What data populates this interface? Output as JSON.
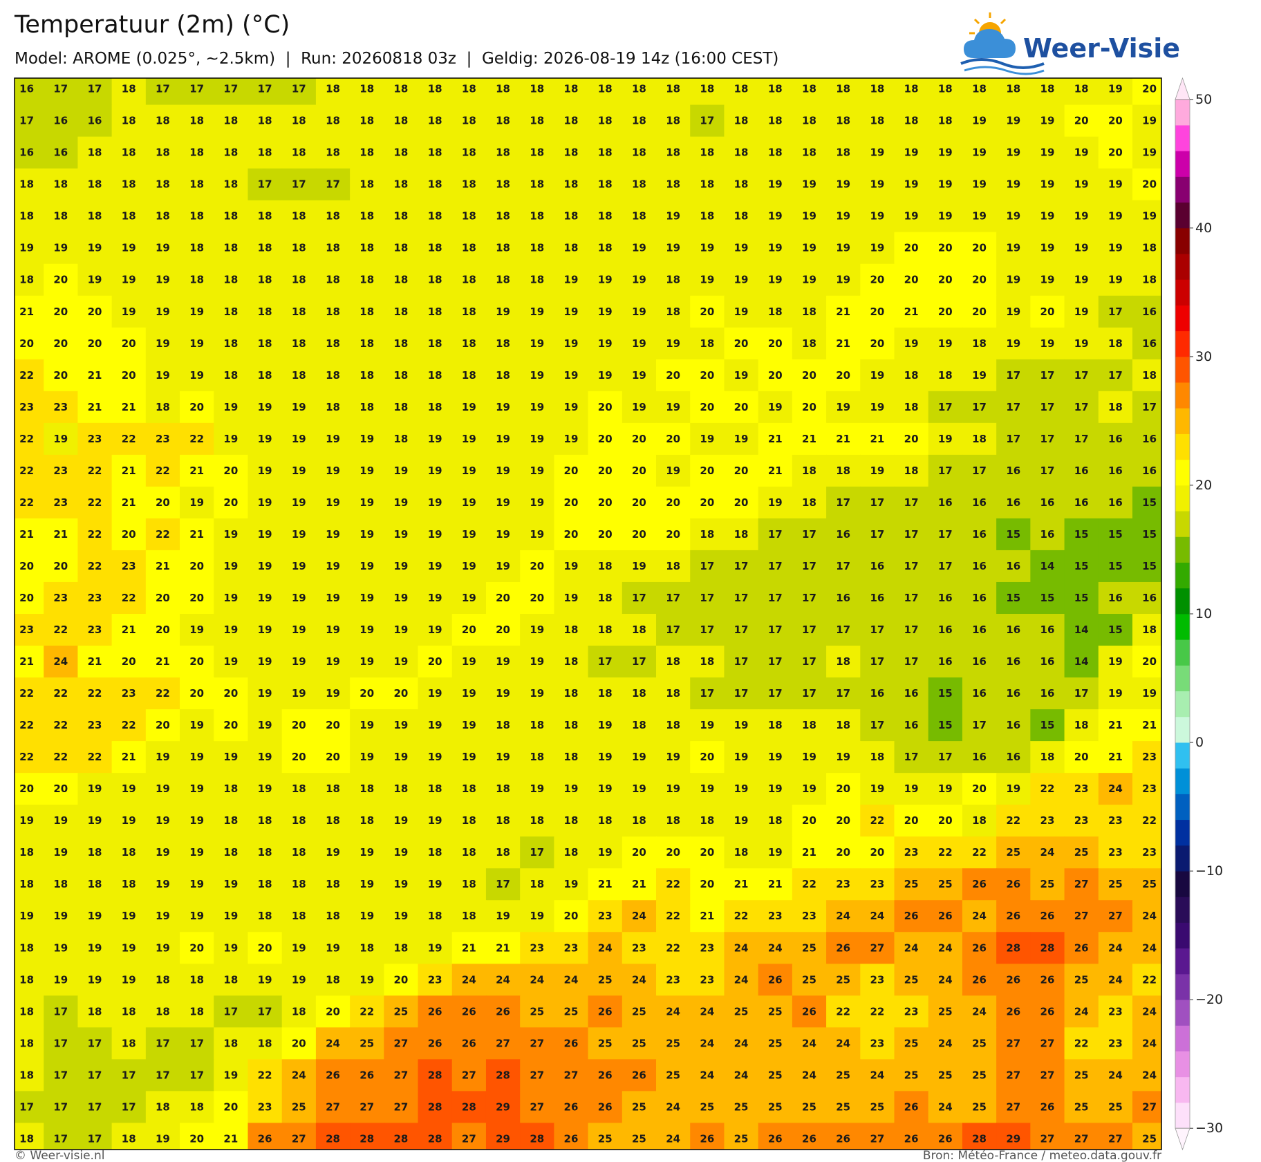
{
  "header": {
    "title": "Temperatuur (2m) (°C)",
    "subtitle": "Model: AROME (0.025°, ~2.5km)  |  Run: 20260818 03z  |  Geldig: 2026-08-19 14z (16:00 CEST)",
    "logo": "Weer-Visie"
  },
  "map": {
    "grid": [
      [
        16,
        17,
        17,
        18,
        17,
        17,
        17,
        17,
        17,
        18,
        18,
        18,
        18,
        18,
        18,
        18,
        18,
        18,
        18,
        18,
        18,
        18,
        18,
        18,
        18,
        18,
        18,
        18,
        18,
        18,
        18,
        18,
        19,
        20
      ],
      [
        17,
        16,
        16,
        18,
        18,
        18,
        18,
        18,
        18,
        18,
        18,
        18,
        18,
        18,
        18,
        18,
        18,
        18,
        18,
        18,
        17,
        18,
        18,
        18,
        18,
        18,
        18,
        18,
        19,
        19,
        19,
        20,
        20,
        19
      ],
      [
        16,
        16,
        18,
        18,
        18,
        18,
        18,
        18,
        18,
        18,
        18,
        18,
        18,
        18,
        18,
        18,
        18,
        18,
        18,
        18,
        18,
        18,
        18,
        18,
        18,
        19,
        19,
        19,
        19,
        19,
        19,
        19,
        20,
        19
      ],
      [
        18,
        18,
        18,
        18,
        18,
        18,
        18,
        17,
        17,
        17,
        18,
        18,
        18,
        18,
        18,
        18,
        18,
        18,
        18,
        18,
        18,
        18,
        19,
        19,
        19,
        19,
        19,
        19,
        19,
        19,
        19,
        19,
        19,
        20
      ],
      [
        18,
        18,
        18,
        18,
        18,
        18,
        18,
        18,
        18,
        18,
        18,
        18,
        18,
        18,
        18,
        18,
        18,
        18,
        18,
        19,
        18,
        18,
        19,
        19,
        19,
        19,
        19,
        19,
        19,
        19,
        19,
        19,
        19,
        19
      ],
      [
        19,
        19,
        19,
        19,
        19,
        18,
        18,
        18,
        18,
        18,
        18,
        18,
        18,
        18,
        18,
        18,
        18,
        18,
        19,
        19,
        19,
        19,
        19,
        19,
        19,
        19,
        20,
        20,
        20,
        19,
        19,
        19,
        19,
        18
      ],
      [
        18,
        20,
        19,
        19,
        19,
        18,
        18,
        18,
        18,
        18,
        18,
        18,
        18,
        18,
        18,
        18,
        19,
        19,
        19,
        18,
        19,
        19,
        19,
        19,
        19,
        20,
        20,
        20,
        20,
        19,
        19,
        19,
        19,
        18
      ],
      [
        21,
        20,
        20,
        19,
        19,
        19,
        18,
        18,
        18,
        18,
        18,
        18,
        18,
        18,
        19,
        19,
        19,
        19,
        19,
        18,
        20,
        19,
        18,
        18,
        21,
        20,
        21,
        20,
        20,
        19,
        20,
        19,
        17,
        16
      ],
      [
        20,
        20,
        20,
        20,
        19,
        19,
        18,
        18,
        18,
        18,
        18,
        18,
        18,
        18,
        18,
        19,
        19,
        19,
        19,
        19,
        18,
        20,
        20,
        18,
        21,
        20,
        19,
        19,
        18,
        19,
        19,
        19,
        18,
        16
      ],
      [
        22,
        20,
        21,
        20,
        19,
        19,
        18,
        18,
        18,
        18,
        18,
        18,
        18,
        18,
        18,
        19,
        19,
        19,
        19,
        20,
        20,
        19,
        20,
        20,
        20,
        19,
        18,
        18,
        19,
        17,
        17,
        17,
        17,
        18
      ],
      [
        23,
        23,
        21,
        21,
        18,
        20,
        19,
        19,
        19,
        18,
        18,
        18,
        18,
        19,
        19,
        19,
        19,
        20,
        19,
        19,
        20,
        20,
        19,
        20,
        19,
        19,
        18,
        17,
        17,
        17,
        17,
        17,
        18,
        17
      ],
      [
        22,
        19,
        23,
        22,
        23,
        22,
        19,
        19,
        19,
        19,
        19,
        18,
        19,
        19,
        19,
        19,
        19,
        20,
        20,
        20,
        19,
        19,
        21,
        21,
        21,
        21,
        20,
        19,
        18,
        17,
        17,
        17,
        16,
        16
      ],
      [
        22,
        23,
        22,
        21,
        22,
        21,
        20,
        19,
        19,
        19,
        19,
        19,
        19,
        19,
        19,
        19,
        20,
        20,
        20,
        19,
        20,
        20,
        21,
        18,
        18,
        19,
        18,
        17,
        17,
        16,
        17,
        16,
        16,
        16
      ],
      [
        22,
        23,
        22,
        21,
        20,
        19,
        20,
        19,
        19,
        19,
        19,
        19,
        19,
        19,
        19,
        19,
        20,
        20,
        20,
        20,
        20,
        20,
        19,
        18,
        17,
        17,
        17,
        16,
        16,
        16,
        16,
        16,
        16,
        15
      ],
      [
        21,
        21,
        22,
        20,
        22,
        21,
        19,
        19,
        19,
        19,
        19,
        19,
        19,
        19,
        19,
        19,
        20,
        20,
        20,
        20,
        18,
        18,
        17,
        17,
        16,
        17,
        17,
        17,
        16,
        15,
        16,
        15,
        15,
        15
      ],
      [
        20,
        20,
        22,
        23,
        21,
        20,
        19,
        19,
        19,
        19,
        19,
        19,
        19,
        19,
        19,
        20,
        19,
        18,
        19,
        18,
        17,
        17,
        17,
        17,
        17,
        16,
        17,
        17,
        16,
        16,
        14,
        15,
        15,
        15
      ],
      [
        20,
        23,
        23,
        22,
        20,
        20,
        19,
        19,
        19,
        19,
        19,
        19,
        19,
        19,
        20,
        20,
        19,
        18,
        17,
        17,
        17,
        17,
        17,
        17,
        16,
        16,
        17,
        16,
        16,
        15,
        15,
        15,
        16,
        16
      ],
      [
        23,
        22,
        23,
        21,
        20,
        19,
        19,
        19,
        19,
        19,
        19,
        19,
        19,
        20,
        20,
        19,
        18,
        18,
        18,
        17,
        17,
        17,
        17,
        17,
        17,
        17,
        17,
        16,
        16,
        16,
        16,
        14,
        15,
        18
      ],
      [
        21,
        24,
        21,
        20,
        21,
        20,
        19,
        19,
        19,
        19,
        19,
        19,
        20,
        19,
        19,
        19,
        18,
        17,
        17,
        18,
        18,
        17,
        17,
        17,
        18,
        17,
        17,
        16,
        16,
        16,
        16,
        14,
        19,
        20
      ],
      [
        22,
        22,
        22,
        23,
        22,
        20,
        20,
        19,
        19,
        19,
        20,
        20,
        19,
        19,
        19,
        19,
        18,
        18,
        18,
        18,
        17,
        17,
        17,
        17,
        17,
        16,
        16,
        15,
        16,
        16,
        16,
        17,
        19,
        19
      ],
      [
        22,
        22,
        23,
        22,
        20,
        19,
        20,
        19,
        20,
        20,
        19,
        19,
        19,
        19,
        18,
        18,
        18,
        19,
        18,
        18,
        19,
        19,
        18,
        18,
        18,
        17,
        16,
        15,
        17,
        16,
        15,
        18,
        21,
        21
      ],
      [
        22,
        22,
        22,
        21,
        19,
        19,
        19,
        19,
        20,
        20,
        19,
        19,
        19,
        19,
        19,
        18,
        18,
        19,
        19,
        19,
        20,
        19,
        19,
        19,
        19,
        18,
        17,
        17,
        16,
        16,
        18,
        20,
        21,
        23
      ],
      [
        20,
        20,
        19,
        19,
        19,
        19,
        18,
        19,
        18,
        18,
        18,
        18,
        18,
        18,
        18,
        19,
        19,
        19,
        19,
        19,
        19,
        19,
        19,
        19,
        20,
        19,
        19,
        19,
        20,
        19,
        22,
        23,
        24,
        23
      ],
      [
        19,
        19,
        19,
        19,
        19,
        19,
        18,
        18,
        18,
        18,
        18,
        19,
        19,
        18,
        18,
        18,
        18,
        18,
        18,
        18,
        18,
        19,
        18,
        20,
        20,
        22,
        20,
        20,
        18,
        22,
        23,
        23,
        23,
        22
      ],
      [
        18,
        19,
        18,
        18,
        19,
        19,
        18,
        18,
        18,
        19,
        19,
        19,
        18,
        18,
        18,
        17,
        18,
        19,
        20,
        20,
        20,
        18,
        19,
        21,
        20,
        20,
        23,
        22,
        22,
        25,
        24,
        25,
        23,
        23
      ],
      [
        18,
        18,
        18,
        18,
        19,
        19,
        19,
        18,
        18,
        18,
        19,
        19,
        19,
        18,
        17,
        18,
        19,
        21,
        21,
        22,
        20,
        21,
        21,
        22,
        23,
        23,
        25,
        25,
        26,
        26,
        25,
        27,
        25,
        25
      ],
      [
        19,
        19,
        19,
        19,
        19,
        19,
        19,
        18,
        18,
        18,
        19,
        19,
        18,
        18,
        19,
        19,
        20,
        23,
        24,
        22,
        21,
        22,
        23,
        23,
        24,
        24,
        26,
        26,
        24,
        26,
        26,
        27,
        27,
        24
      ],
      [
        18,
        19,
        19,
        19,
        19,
        20,
        19,
        20,
        19,
        19,
        18,
        18,
        19,
        21,
        21,
        23,
        23,
        24,
        23,
        22,
        23,
        24,
        24,
        25,
        26,
        27,
        24,
        24,
        26,
        28,
        28,
        26,
        24,
        24
      ],
      [
        18,
        19,
        19,
        19,
        18,
        18,
        18,
        19,
        19,
        18,
        19,
        20,
        23,
        24,
        24,
        24,
        24,
        25,
        24,
        23,
        23,
        24,
        26,
        25,
        25,
        23,
        25,
        24,
        26,
        26,
        26,
        25,
        24,
        22
      ],
      [
        18,
        17,
        18,
        18,
        18,
        18,
        17,
        17,
        18,
        20,
        22,
        25,
        26,
        26,
        26,
        25,
        25,
        26,
        25,
        24,
        24,
        25,
        25,
        26,
        22,
        22,
        23,
        25,
        24,
        26,
        26,
        24,
        23,
        24
      ],
      [
        18,
        17,
        17,
        18,
        17,
        17,
        18,
        18,
        20,
        24,
        25,
        27,
        26,
        26,
        27,
        27,
        26,
        25,
        25,
        25,
        24,
        24,
        25,
        24,
        24,
        23,
        25,
        24,
        25,
        27,
        27,
        22,
        23,
        24
      ],
      [
        18,
        17,
        17,
        17,
        17,
        17,
        19,
        22,
        24,
        26,
        26,
        27,
        28,
        27,
        28,
        27,
        27,
        26,
        26,
        25,
        24,
        24,
        25,
        24,
        25,
        24,
        25,
        25,
        25,
        27,
        27,
        25,
        24,
        24
      ],
      [
        17,
        17,
        17,
        17,
        18,
        18,
        20,
        23,
        25,
        27,
        27,
        27,
        28,
        28,
        29,
        27,
        26,
        26,
        25,
        24,
        25,
        25,
        25,
        25,
        25,
        25,
        26,
        24,
        25,
        27,
        26,
        25,
        25,
        27
      ],
      [
        18,
        17,
        17,
        18,
        19,
        20,
        21,
        26,
        27,
        28,
        28,
        28,
        28,
        27,
        29,
        28,
        26,
        25,
        25,
        24,
        26,
        25,
        26,
        26,
        26,
        27,
        26,
        26,
        28,
        29,
        27,
        27,
        27,
        25
      ]
    ]
  },
  "colorbar": {
    "lim": [
      -30,
      50
    ],
    "ticks": [
      {
        "value": -30,
        "label": "−30"
      },
      {
        "value": -20,
        "label": "−20"
      },
      {
        "value": -10,
        "label": "−10"
      },
      0,
      10,
      20,
      30,
      40,
      50
    ],
    "colors": [
      "#fde0fa",
      "#f8b8f0",
      "#e890e4",
      "#cc70d8",
      "#a050c0",
      "#7a32a8",
      "#5a1890",
      "#3a0a70",
      "#2a0c58",
      "#180840",
      "#0a1a70",
      "#0030a0",
      "#0060c0",
      "#0090d8",
      "#30c0f0",
      "#ccf8dc",
      "#a8eeb0",
      "#78dc78",
      "#48c848",
      "#00bb00",
      "#009000",
      "#33aa00",
      "#77bb00",
      "#c8d800",
      "#f0f000",
      "#ffff00",
      "#ffe000",
      "#ffb800",
      "#ff8800",
      "#ff5500",
      "#ff2a00",
      "#ee0000",
      "#cc0000",
      "#aa0000",
      "#880000",
      "#5a0030",
      "#880070",
      "#cc00aa",
      "#ff44dd",
      "#ffaadd"
    ]
  },
  "footer": {
    "left": "© Weer-visie.nl",
    "right": "Bron: Météo-France / meteo.data.gouv.fr"
  }
}
